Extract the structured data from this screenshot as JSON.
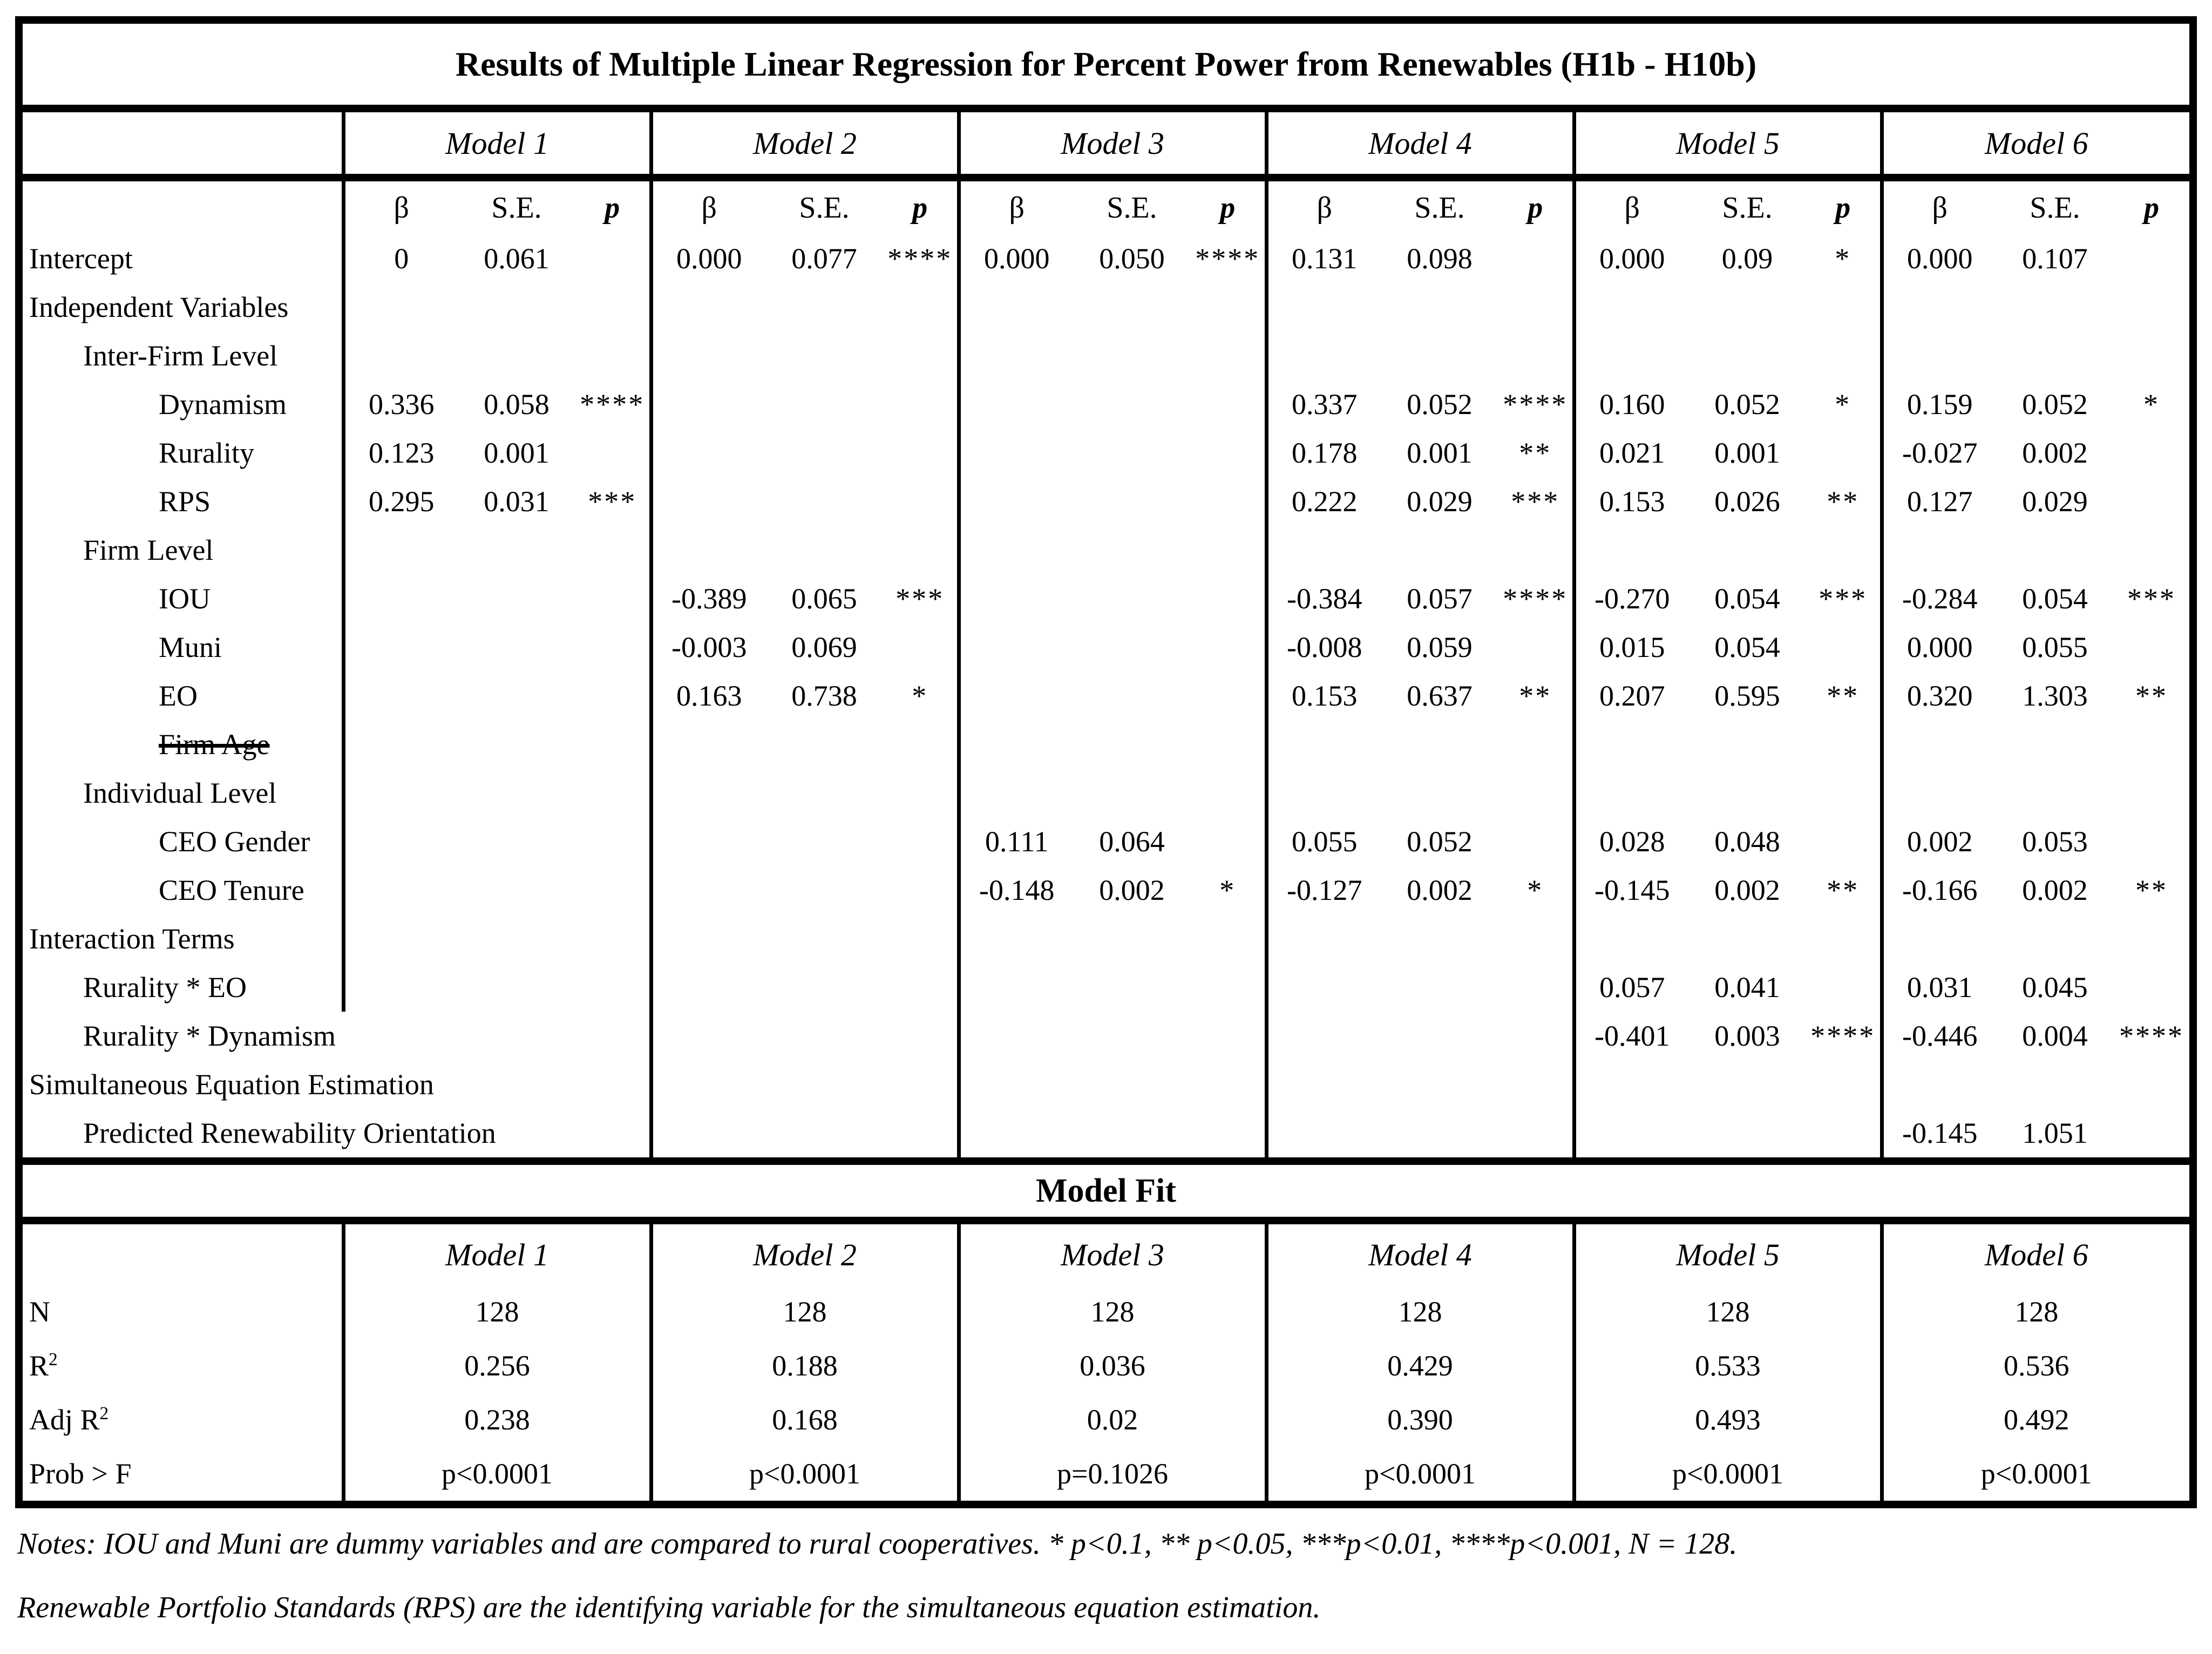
{
  "title": "Results of Multiple Linear Regression for Percent Power from Renewables (H1b - H10b)",
  "models": [
    "Model 1",
    "Model 2",
    "Model 3",
    "Model 4",
    "Model 5",
    "Model 6"
  ],
  "subheader": {
    "beta": "β",
    "se": "S.E.",
    "p": "p"
  },
  "rows": [
    {
      "label": "Intercept",
      "indent": 0,
      "cells": [
        [
          "0",
          "0.061",
          ""
        ],
        [
          "0.000",
          "0.077",
          "****"
        ],
        [
          "0.000",
          "0.050",
          "****"
        ],
        [
          "0.131",
          "0.098",
          ""
        ],
        [
          "0.000",
          "0.09",
          "*"
        ],
        [
          "0.000",
          "0.107",
          ""
        ]
      ]
    },
    {
      "label": "Independent Variables",
      "indent": 0,
      "cells": null
    },
    {
      "label": "Inter-Firm Level",
      "indent": 1,
      "cells": null
    },
    {
      "label": "Dynamism",
      "indent": 2,
      "cells": [
        [
          "0.336",
          "0.058",
          "****"
        ],
        null,
        null,
        [
          "0.337",
          "0.052",
          "****"
        ],
        [
          "0.160",
          "0.052",
          "*"
        ],
        [
          "0.159",
          "0.052",
          "*"
        ]
      ]
    },
    {
      "label": "Rurality",
      "indent": 2,
      "cells": [
        [
          "0.123",
          "0.001",
          ""
        ],
        null,
        null,
        [
          "0.178",
          "0.001",
          "**"
        ],
        [
          "0.021",
          "0.001",
          ""
        ],
        [
          "-0.027",
          "0.002",
          ""
        ]
      ]
    },
    {
      "label": "RPS",
      "indent": 2,
      "cells": [
        [
          "0.295",
          "0.031",
          "***"
        ],
        null,
        null,
        [
          "0.222",
          "0.029",
          "***"
        ],
        [
          "0.153",
          "0.026",
          "**"
        ],
        [
          "0.127",
          "0.029",
          ""
        ]
      ]
    },
    {
      "label": "Firm Level",
      "indent": 1,
      "cells": null
    },
    {
      "label": "IOU",
      "indent": 2,
      "cells": [
        null,
        [
          "-0.389",
          "0.065",
          "***"
        ],
        null,
        [
          "-0.384",
          "0.057",
          "****"
        ],
        [
          "-0.270",
          "0.054",
          "***"
        ],
        [
          "-0.284",
          "0.054",
          "***"
        ]
      ]
    },
    {
      "label": "Muni",
      "indent": 2,
      "cells": [
        null,
        [
          "-0.003",
          "0.069",
          ""
        ],
        null,
        [
          "-0.008",
          "0.059",
          ""
        ],
        [
          "0.015",
          "0.054",
          ""
        ],
        [
          "0.000",
          "0.055",
          ""
        ]
      ]
    },
    {
      "label": "EO",
      "indent": 2,
      "cells": [
        null,
        [
          "0.163",
          "0.738",
          "*"
        ],
        null,
        [
          "0.153",
          "0.637",
          "**"
        ],
        [
          "0.207",
          "0.595",
          "**"
        ],
        [
          "0.320",
          "1.303",
          "**"
        ]
      ]
    },
    {
      "label": "Firm Age",
      "indent": 2,
      "strike": true,
      "cells": null
    },
    {
      "label": "Individual Level",
      "indent": 1,
      "cells": null
    },
    {
      "label": "CEO Gender",
      "indent": 2,
      "cells": [
        null,
        null,
        [
          "0.111",
          "0.064",
          ""
        ],
        [
          "0.055",
          "0.052",
          ""
        ],
        [
          "0.028",
          "0.048",
          ""
        ],
        [
          "0.002",
          "0.053",
          ""
        ]
      ]
    },
    {
      "label": "CEO Tenure",
      "indent": 2,
      "cells": [
        null,
        null,
        [
          "-0.148",
          "0.002",
          "*"
        ],
        [
          "-0.127",
          "0.002",
          "*"
        ],
        [
          "-0.145",
          "0.002",
          "**"
        ],
        [
          "-0.166",
          "0.002",
          "**"
        ]
      ]
    },
    {
      "label": "Interaction Terms",
      "indent": 0,
      "cells": null
    },
    {
      "label": "Rurality * EO",
      "indent": 1,
      "cells": [
        null,
        null,
        null,
        null,
        [
          "0.057",
          "0.041",
          ""
        ],
        [
          "0.031",
          "0.045",
          ""
        ]
      ]
    },
    {
      "label": "Rurality * Dynamism",
      "indent": 1,
      "wide": true,
      "cells": [
        null,
        null,
        null,
        null,
        [
          "-0.401",
          "0.003",
          "****"
        ],
        [
          "-0.446",
          "0.004",
          "****"
        ]
      ]
    },
    {
      "label": "Simultaneous Equation Estimation",
      "indent": 0,
      "wide": true,
      "cells": null
    },
    {
      "label": "Predicted Renewability Orientation",
      "indent": 1,
      "wide": true,
      "cells": [
        null,
        null,
        null,
        null,
        null,
        [
          "-0.145",
          "1.051",
          ""
        ]
      ]
    }
  ],
  "model_fit": {
    "banner": "Model Fit",
    "models": [
      "Model 1",
      "Model 2",
      "Model 3",
      "Model 4",
      "Model 5",
      "Model 6"
    ],
    "rows": [
      {
        "label": "N",
        "values": [
          "128",
          "128",
          "128",
          "128",
          "128",
          "128"
        ]
      },
      {
        "label": "R^2",
        "values": [
          "0.256",
          "0.188",
          "0.036",
          "0.429",
          "0.533",
          "0.536"
        ]
      },
      {
        "label": "Adj R^2",
        "values": [
          "0.238",
          "0.168",
          "0.02",
          "0.390",
          "0.493",
          "0.492"
        ]
      },
      {
        "label": "Prob > F",
        "values": [
          "p<0.0001",
          "p<0.0001",
          "p=0.1026",
          "p<0.0001",
          "p<0.0001",
          "p<0.0001"
        ]
      }
    ]
  },
  "notes": [
    "Notes: IOU and Muni are dummy variables and are compared to rural cooperatives.  * p<0.1,  ** p<0.05,  ***p<0.01,  ****p<0.001,  N = 128.",
    "Renewable Portfolio Standards (RPS) are the identifying variable for the simultaneous equation estimation."
  ]
}
